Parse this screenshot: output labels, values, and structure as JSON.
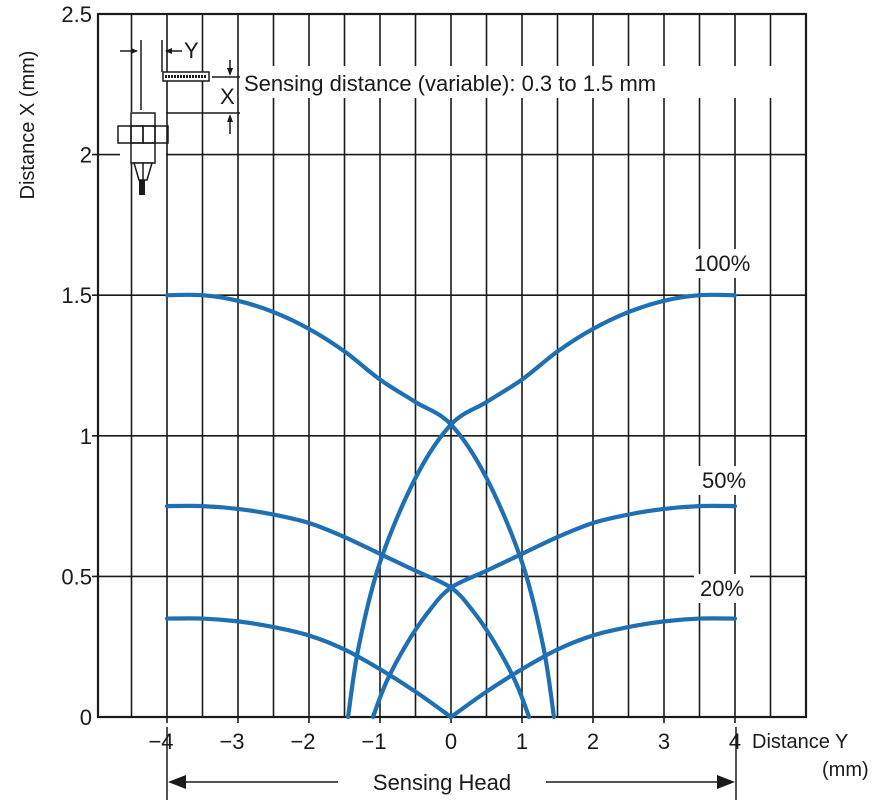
{
  "chart_data": {
    "type": "line",
    "xlabel_line1": "Distance Y",
    "xlabel_line2": "(mm)",
    "ylabel": "Distance X (mm)",
    "xlim": [
      -4,
      4
    ],
    "ylim": [
      0,
      2.5
    ],
    "x_ticks": [
      -4,
      -3,
      -2,
      -1,
      0,
      1,
      2,
      3,
      4
    ],
    "x_tick_labels": [
      "−4",
      "−3",
      "−2",
      "−1",
      "0",
      "1",
      "2",
      "3",
      "4"
    ],
    "y_ticks": [
      0,
      0.5,
      1,
      1.5,
      2,
      2.5
    ],
    "y_tick_labels": [
      "0",
      "0.5",
      "1",
      "1.5",
      "2",
      "2.5"
    ],
    "grid": true,
    "color": "#1f6fb5",
    "series": [
      {
        "name": "100%",
        "curves": [
          {
            "x": [
              -4,
              -3.5,
              -3,
              -2.5,
              -2,
              -1.5,
              -1,
              -0.5,
              0,
              0.5,
              1,
              1.3,
              1.45
            ],
            "y": [
              1.5,
              1.5,
              1.48,
              1.44,
              1.38,
              1.3,
              1.2,
              1.12,
              1.04,
              0.85,
              0.55,
              0.25,
              0
            ]
          },
          {
            "x": [
              4,
              3.5,
              3,
              2.5,
              2,
              1.5,
              1,
              0.5,
              0,
              -0.5,
              -1,
              -1.3,
              -1.45
            ],
            "y": [
              1.5,
              1.5,
              1.48,
              1.44,
              1.38,
              1.3,
              1.2,
              1.12,
              1.04,
              0.85,
              0.55,
              0.25,
              0
            ]
          }
        ]
      },
      {
        "name": "50%",
        "curves": [
          {
            "x": [
              -4,
              -3.5,
              -3,
              -2.5,
              -2,
              -1.5,
              -1,
              -0.5,
              0,
              0.3,
              0.6,
              0.9,
              1.1
            ],
            "y": [
              0.75,
              0.75,
              0.74,
              0.72,
              0.69,
              0.64,
              0.58,
              0.52,
              0.46,
              0.38,
              0.27,
              0.13,
              0
            ]
          },
          {
            "x": [
              4,
              3.5,
              3,
              2.5,
              2,
              1.5,
              1,
              0.5,
              0,
              -0.3,
              -0.6,
              -0.9,
              -1.1
            ],
            "y": [
              0.75,
              0.75,
              0.74,
              0.72,
              0.69,
              0.64,
              0.58,
              0.52,
              0.46,
              0.38,
              0.27,
              0.13,
              0
            ]
          }
        ]
      },
      {
        "name": "20%",
        "curves": [
          {
            "x": [
              -4,
              -3.5,
              -3,
              -2.5,
              -2,
              -1.5,
              -1,
              -0.5,
              0
            ],
            "y": [
              0.35,
              0.35,
              0.34,
              0.32,
              0.29,
              0.24,
              0.17,
              0.09,
              0
            ]
          },
          {
            "x": [
              4,
              3.5,
              3,
              2.5,
              2,
              1.5,
              1,
              0.5,
              0
            ],
            "y": [
              0.35,
              0.35,
              0.34,
              0.32,
              0.29,
              0.24,
              0.17,
              0.09,
              0
            ]
          }
        ]
      }
    ],
    "annotations": {
      "sensing_distance": "Sensing distance (variable): 0.3 to 1.5 mm",
      "sensing_head": "Sensing Head",
      "diagram_x_label": "X",
      "diagram_y_label": "Y"
    }
  }
}
